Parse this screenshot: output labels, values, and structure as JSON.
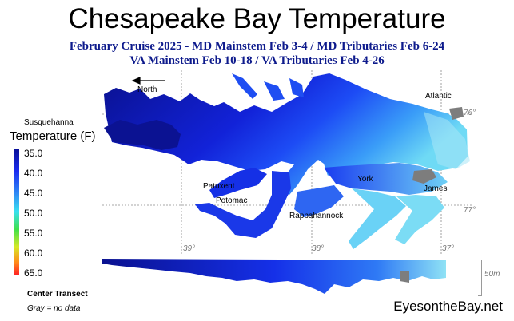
{
  "header": {
    "title": "Chesapeake Bay Temperature",
    "subtitle_line1": "February Cruise 2025 - MD Mainstem Feb 3-4 / MD Tributaries Feb 6-24",
    "subtitle_line2": "VA Mainstem Feb 10-18 /  VA Tributaries Feb 4-26"
  },
  "map_labels": {
    "north": "North",
    "susquehanna": "Susquehanna",
    "atlantic": "Atlantic",
    "patuxent": "Patuxent",
    "potomac": "Potomac",
    "york": "York",
    "james": "James",
    "rappahannock": "Rappahannock"
  },
  "gridlines": {
    "lat_76": "76°",
    "lat_77": "77°",
    "lon_39": "39°",
    "lon_38": "38°",
    "lon_37": "37°"
  },
  "legend": {
    "title": "Temperature (F)",
    "ticks": [
      "35.0",
      "40.0",
      "45.0",
      "50.0",
      "55.0",
      "60.0",
      "65.0"
    ],
    "colors": [
      "#080f96",
      "#1a2cf0",
      "#38c8f5",
      "#3ee04a",
      "#d6e826",
      "#ff8c1a",
      "#ff2424"
    ]
  },
  "transect": {
    "label": "Center Transect",
    "gray_note": "Gray = no data",
    "depth_scale": "50m"
  },
  "footer": {
    "site": "EyesontheBay.net"
  }
}
